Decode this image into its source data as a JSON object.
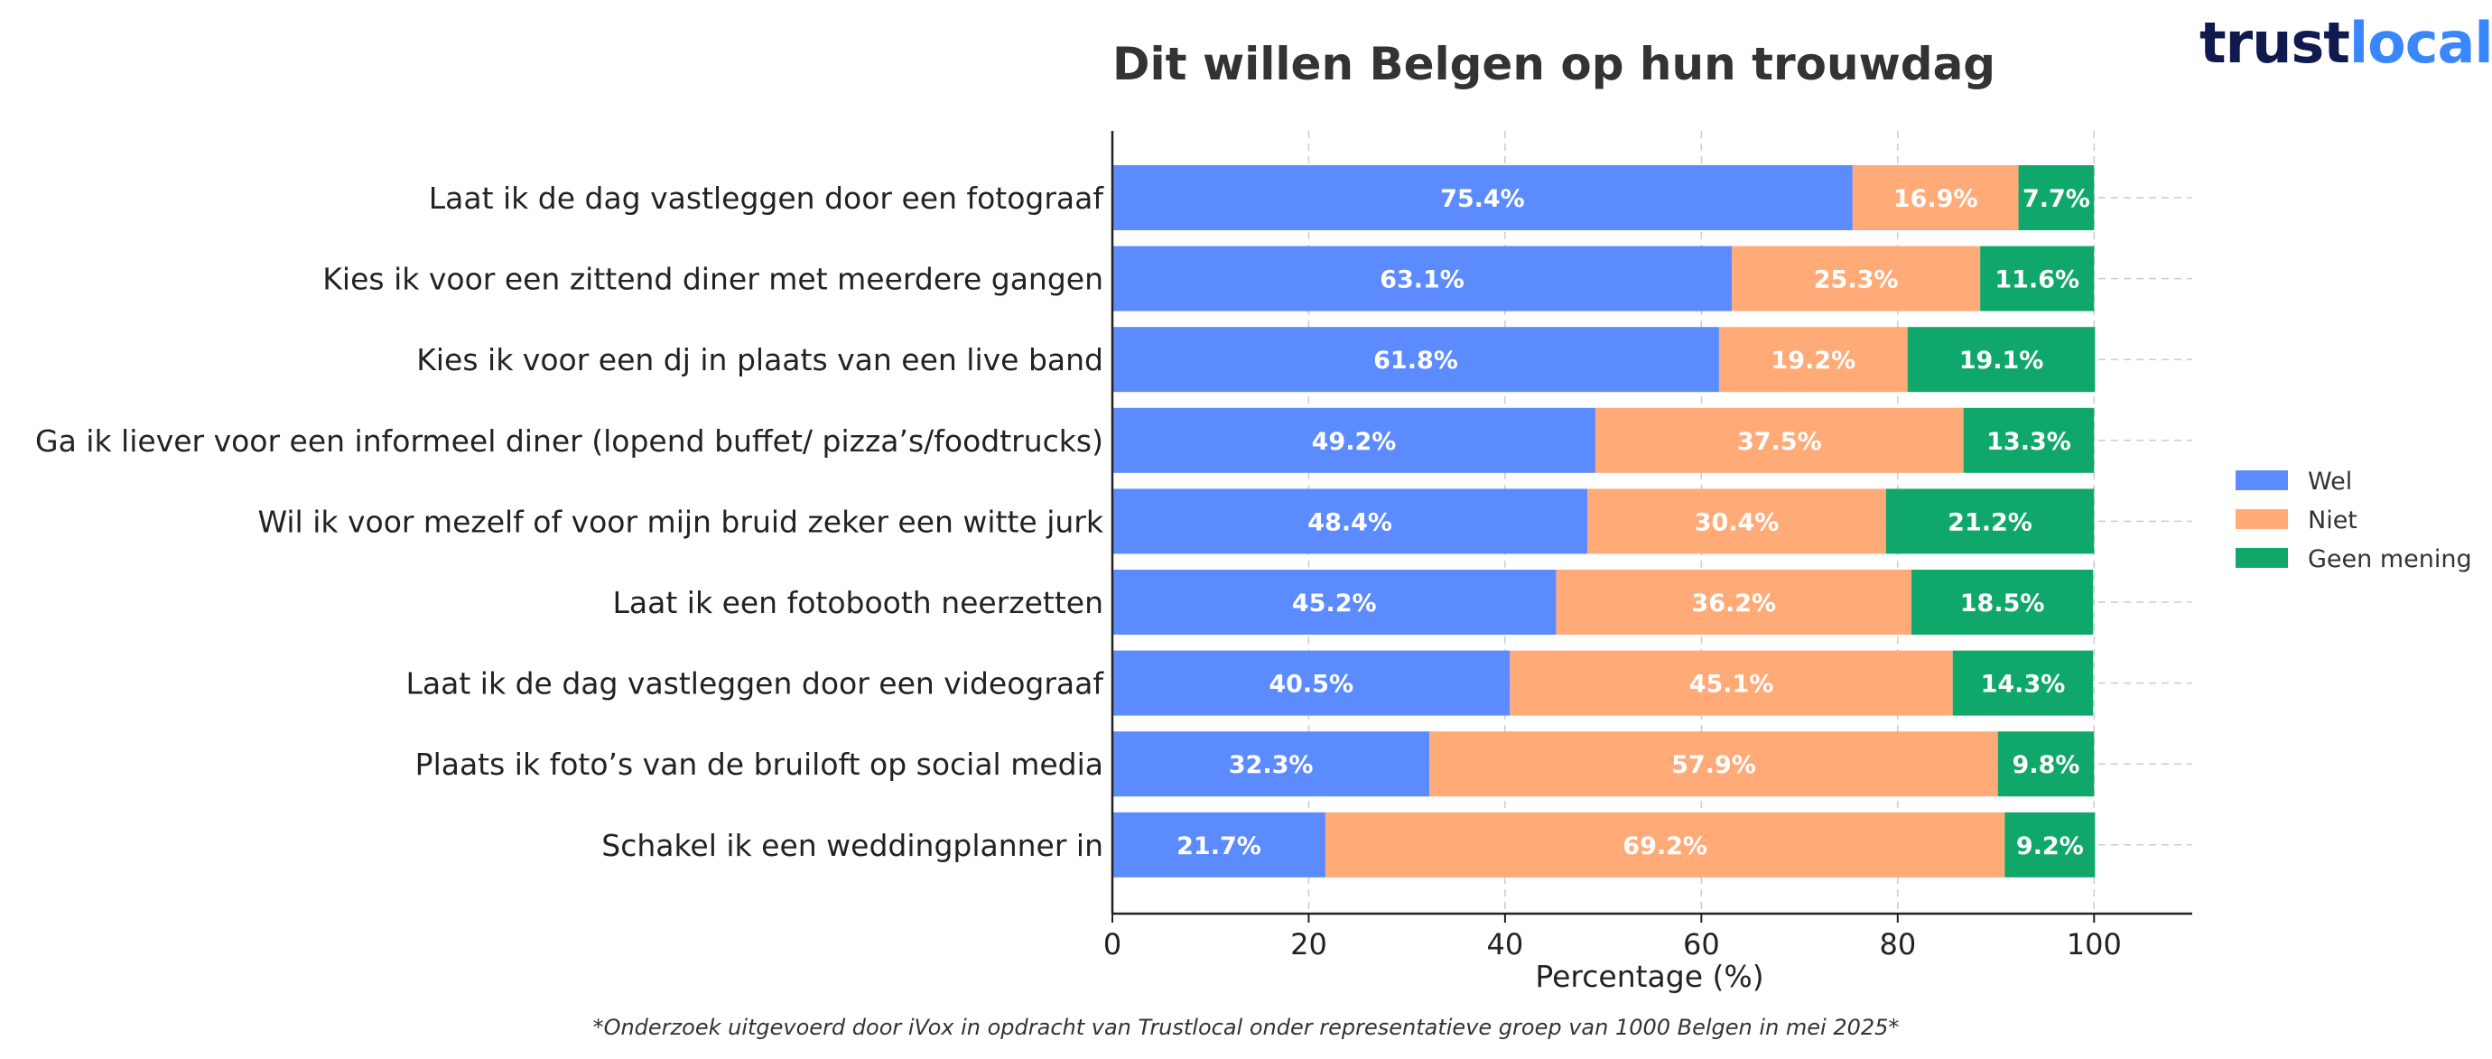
{
  "brand": {
    "logo_part1": "trust",
    "logo_part2": "local",
    "logo_text": "trustlocal"
  },
  "footnote": "*Onderzoek uitgevoerd door iVox in opdracht van Trustlocal onder representatieve groep van 1000 Belgen in mei 2025*",
  "chart_data": {
    "type": "bar",
    "orientation": "horizontal",
    "stacked": true,
    "title": "Dit willen Belgen op hun trouwdag",
    "xlabel": "Percentage (%)",
    "ylabel": "",
    "xlim": [
      0,
      110
    ],
    "xticks": [
      0,
      20,
      40,
      60,
      80,
      100
    ],
    "grid": true,
    "legend_position": "right",
    "categories": [
      "Laat ik de dag vastleggen door een fotograaf",
      "Kies ik voor een zittend diner met meerdere gangen",
      "Kies ik voor een dj in plaats van een live band",
      "Ga ik liever voor een informeel diner (lopend buffet/ pizza’s/foodtrucks)",
      "Wil ik voor mezelf of voor mijn bruid zeker een witte jurk",
      "Laat ik een fotobooth neerzetten",
      "Laat ik de dag vastleggen door een videograaf",
      "Plaats ik foto’s van de bruiloft op social media",
      "Schakel ik een weddingplanner in"
    ],
    "series": [
      {
        "name": "Wel",
        "color": "#5b8bff",
        "values": [
          75.4,
          63.1,
          61.8,
          49.2,
          48.4,
          45.2,
          40.5,
          32.3,
          21.7
        ],
        "labels": [
          "75.4%",
          "63.1%",
          "61.8%",
          "49.2%",
          "48.4%",
          "45.2%",
          "40.5%",
          "32.3%",
          "21.7%"
        ]
      },
      {
        "name": "Niet",
        "color": "#ffaa77",
        "values": [
          16.9,
          25.3,
          19.2,
          37.5,
          30.4,
          36.2,
          45.1,
          57.9,
          69.2
        ],
        "labels": [
          "16.9%",
          "25.3%",
          "19.2%",
          "37.5%",
          "30.4%",
          "36.2%",
          "45.1%",
          "57.9%",
          "69.2%"
        ]
      },
      {
        "name": "Geen mening",
        "color": "#10a86a",
        "values": [
          7.7,
          11.6,
          19.1,
          13.3,
          21.2,
          18.5,
          14.3,
          9.8,
          9.2
        ],
        "labels": [
          "7.7%",
          "11.6%",
          "19.1%",
          "13.3%",
          "21.2%",
          "18.5%",
          "14.3%",
          "9.8%",
          "9.2%"
        ]
      }
    ]
  }
}
